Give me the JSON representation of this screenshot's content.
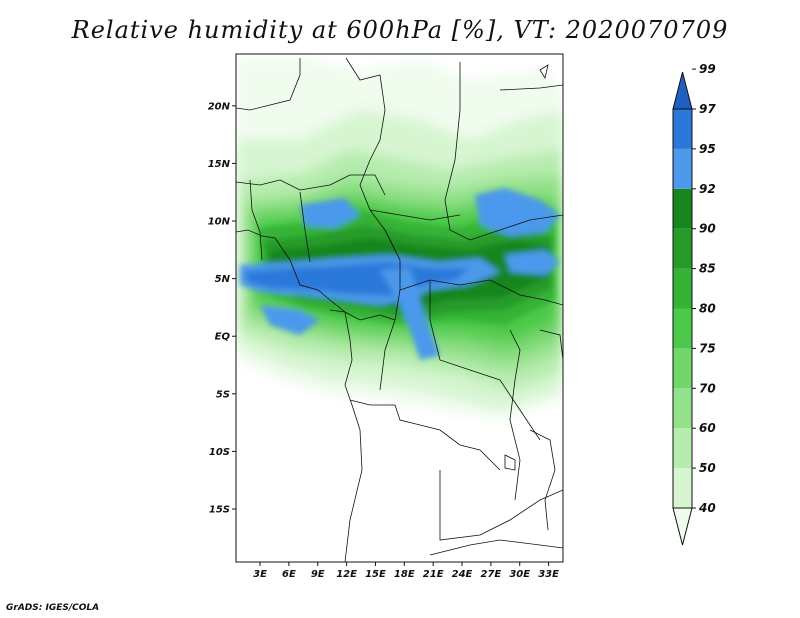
{
  "title": "Relative humidity at 600hPa [%], VT: 2020070709",
  "footer": "GrADS: IGES/COLA",
  "map": {
    "lat_range": [
      -19.6,
      24.5
    ],
    "lon_range": [
      0.5,
      34.5
    ],
    "lat_ticks": [
      {
        "value": 20,
        "label": "20N"
      },
      {
        "value": 15,
        "label": "15N"
      },
      {
        "value": 10,
        "label": "10N"
      },
      {
        "value": 5,
        "label": "5N"
      },
      {
        "value": 0,
        "label": "EQ"
      },
      {
        "value": -5,
        "label": "5S"
      },
      {
        "value": -10,
        "label": "10S"
      },
      {
        "value": -15,
        "label": "15S"
      }
    ],
    "lon_ticks": [
      {
        "value": 3,
        "label": "3E"
      },
      {
        "value": 6,
        "label": "6E"
      },
      {
        "value": 9,
        "label": "9E"
      },
      {
        "value": 12,
        "label": "12E"
      },
      {
        "value": 15,
        "label": "15E"
      },
      {
        "value": 18,
        "label": "18E"
      },
      {
        "value": 21,
        "label": "21E"
      },
      {
        "value": 24,
        "label": "24E"
      },
      {
        "value": 27,
        "label": "27E"
      },
      {
        "value": 30,
        "label": "30E"
      },
      {
        "value": 33,
        "label": "33E"
      }
    ]
  },
  "colorbar": {
    "levels": [
      {
        "label": "40",
        "color": "#f0fcee"
      },
      {
        "label": "50",
        "color": "#d6f5d0"
      },
      {
        "label": "60",
        "color": "#b6ecae"
      },
      {
        "label": "70",
        "color": "#94e18b"
      },
      {
        "label": "75",
        "color": "#72d66a"
      },
      {
        "label": "80",
        "color": "#4cc94a"
      },
      {
        "label": "85",
        "color": "#35b336"
      },
      {
        "label": "90",
        "color": "#269b2a"
      },
      {
        "label": "92",
        "color": "#17861e"
      },
      {
        "label": "95",
        "color": "#4c99ec"
      },
      {
        "label": "97",
        "color": "#2b78da"
      },
      {
        "label": "99",
        "color": "#1f5fbf"
      }
    ]
  }
}
